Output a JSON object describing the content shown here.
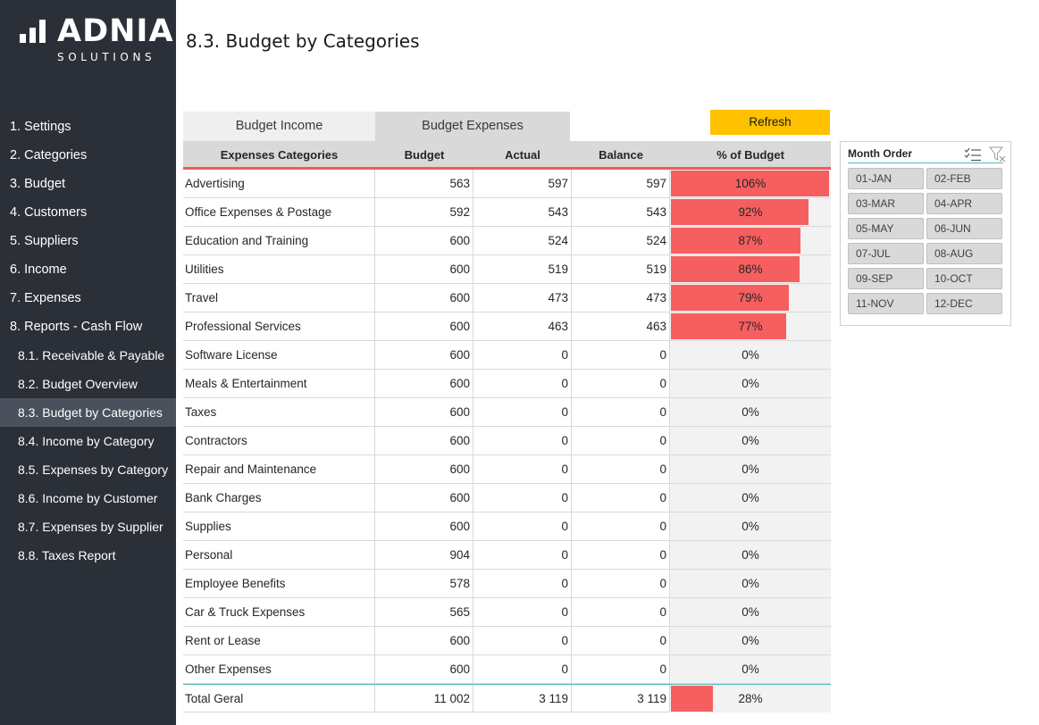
{
  "app": {
    "logo_text": "ADNIA",
    "logo_sub": "SOLUTIONS"
  },
  "sidebar": {
    "items": [
      {
        "label": "1. Settings",
        "sub": false,
        "active": false
      },
      {
        "label": "2. Categories",
        "sub": false,
        "active": false
      },
      {
        "label": "3. Budget",
        "sub": false,
        "active": false
      },
      {
        "label": "4. Customers",
        "sub": false,
        "active": false
      },
      {
        "label": "5. Suppliers",
        "sub": false,
        "active": false
      },
      {
        "label": "6. Income",
        "sub": false,
        "active": false
      },
      {
        "label": "7. Expenses",
        "sub": false,
        "active": false
      },
      {
        "label": "8. Reports - Cash Flow",
        "sub": false,
        "active": false
      },
      {
        "label": "8.1. Receivable & Payable",
        "sub": true,
        "active": false
      },
      {
        "label": "8.2. Budget Overview",
        "sub": true,
        "active": false
      },
      {
        "label": "8.3. Budget by Categories",
        "sub": true,
        "active": true
      },
      {
        "label": "8.4. Income by Category",
        "sub": true,
        "active": false
      },
      {
        "label": "8.5. Expenses by Category",
        "sub": true,
        "active": false
      },
      {
        "label": "8.6. Income by Customer",
        "sub": true,
        "active": false
      },
      {
        "label": "8.7. Expenses by Supplier",
        "sub": true,
        "active": false
      },
      {
        "label": "8.8. Taxes Report",
        "sub": true,
        "active": false
      }
    ]
  },
  "page": {
    "title": "8.3. Budget by Categories"
  },
  "tabs": {
    "income": "Budget Income",
    "expenses": "Budget Expenses"
  },
  "toolbar": {
    "refresh_label": "Refresh"
  },
  "table": {
    "headers": [
      "Expenses Categories",
      "Budget",
      "Actual",
      "Balance",
      "% of Budget"
    ],
    "rows": [
      {
        "category": "Advertising",
        "budget": "563",
        "actual": "597",
        "balance": "597",
        "pct": "106%",
        "pct_value": 1.06
      },
      {
        "category": "Office Expenses & Postage",
        "budget": "592",
        "actual": "543",
        "balance": "543",
        "pct": "92%",
        "pct_value": 0.92
      },
      {
        "category": "Education and Training",
        "budget": "600",
        "actual": "524",
        "balance": "524",
        "pct": "87%",
        "pct_value": 0.87
      },
      {
        "category": "Utilities",
        "budget": "600",
        "actual": "519",
        "balance": "519",
        "pct": "86%",
        "pct_value": 0.86
      },
      {
        "category": "Travel",
        "budget": "600",
        "actual": "473",
        "balance": "473",
        "pct": "79%",
        "pct_value": 0.79
      },
      {
        "category": "Professional Services",
        "budget": "600",
        "actual": "463",
        "balance": "463",
        "pct": "77%",
        "pct_value": 0.77
      },
      {
        "category": "Software License",
        "budget": "600",
        "actual": "0",
        "balance": "0",
        "pct": "0%",
        "pct_value": 0
      },
      {
        "category": "Meals & Entertainment",
        "budget": "600",
        "actual": "0",
        "balance": "0",
        "pct": "0%",
        "pct_value": 0
      },
      {
        "category": "Taxes",
        "budget": "600",
        "actual": "0",
        "balance": "0",
        "pct": "0%",
        "pct_value": 0
      },
      {
        "category": "Contractors",
        "budget": "600",
        "actual": "0",
        "balance": "0",
        "pct": "0%",
        "pct_value": 0
      },
      {
        "category": "Repair and Maintenance",
        "budget": "600",
        "actual": "0",
        "balance": "0",
        "pct": "0%",
        "pct_value": 0
      },
      {
        "category": "Bank Charges",
        "budget": "600",
        "actual": "0",
        "balance": "0",
        "pct": "0%",
        "pct_value": 0
      },
      {
        "category": "Supplies",
        "budget": "600",
        "actual": "0",
        "balance": "0",
        "pct": "0%",
        "pct_value": 0
      },
      {
        "category": "Personal",
        "budget": "904",
        "actual": "0",
        "balance": "0",
        "pct": "0%",
        "pct_value": 0
      },
      {
        "category": "Employee Benefits",
        "budget": "578",
        "actual": "0",
        "balance": "0",
        "pct": "0%",
        "pct_value": 0
      },
      {
        "category": "Car & Truck Expenses",
        "budget": "565",
        "actual": "0",
        "balance": "0",
        "pct": "0%",
        "pct_value": 0
      },
      {
        "category": "Rent or Lease",
        "budget": "600",
        "actual": "0",
        "balance": "0",
        "pct": "0%",
        "pct_value": 0
      },
      {
        "category": "Other Expenses",
        "budget": "600",
        "actual": "0",
        "balance": "0",
        "pct": "0%",
        "pct_value": 0
      }
    ],
    "total": {
      "category": "Total Geral",
      "budget": "11 002",
      "actual": "3 119",
      "balance": "3 119",
      "pct": "28%",
      "pct_value": 0.28
    }
  },
  "slicer": {
    "title": "Month Order",
    "multiselect_icon": "multi-select-icon",
    "clear_icon": "clear-filter-icon",
    "items": [
      "01-JAN",
      "02-FEB",
      "03-MAR",
      "04-APR",
      "05-MAY",
      "06-JUN",
      "07-JUL",
      "08-AUG",
      "09-SEP",
      "10-OCT",
      "11-NOV",
      "12-DEC"
    ]
  },
  "colors": {
    "sidebar_bg": "#2b3038",
    "sidebar_active": "#4a515c",
    "accent_red": "#f65f5f",
    "refresh_yellow": "#ffc000",
    "teal_line": "#55b8b8"
  }
}
